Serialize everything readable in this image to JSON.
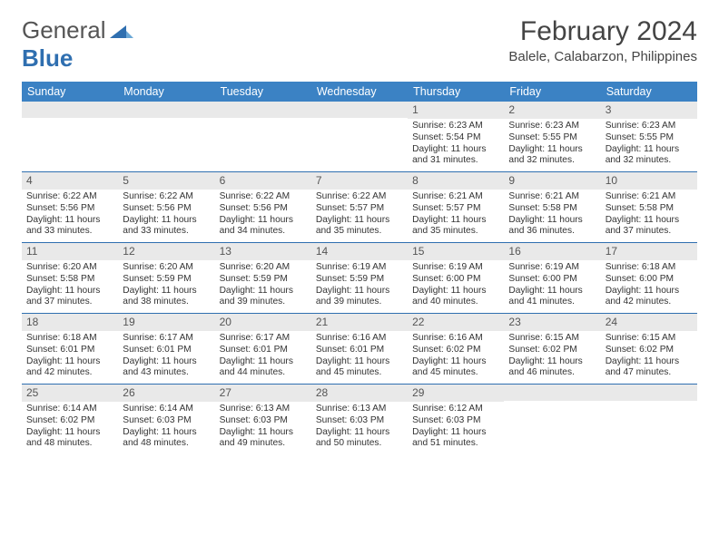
{
  "logo": {
    "text_general": "General",
    "text_blue": "Blue"
  },
  "header": {
    "month": "February 2024",
    "location": "Balele, Calabarzon, Philippines"
  },
  "weekdays": [
    "Sunday",
    "Monday",
    "Tuesday",
    "Wednesday",
    "Thursday",
    "Friday",
    "Saturday"
  ],
  "colors": {
    "header_bg": "#3b82c4",
    "header_text": "#ffffff",
    "stripe_bg": "#e9e9e9",
    "border": "#2f6fb0",
    "logo_blue": "#2f6fb0",
    "text": "#333333"
  },
  "weeks": [
    [
      {
        "empty": true
      },
      {
        "empty": true
      },
      {
        "empty": true
      },
      {
        "empty": true
      },
      {
        "day": "1",
        "sunrise": "Sunrise: 6:23 AM",
        "sunset": "Sunset: 5:54 PM",
        "d1": "Daylight: 11 hours",
        "d2": "and 31 minutes."
      },
      {
        "day": "2",
        "sunrise": "Sunrise: 6:23 AM",
        "sunset": "Sunset: 5:55 PM",
        "d1": "Daylight: 11 hours",
        "d2": "and 32 minutes."
      },
      {
        "day": "3",
        "sunrise": "Sunrise: 6:23 AM",
        "sunset": "Sunset: 5:55 PM",
        "d1": "Daylight: 11 hours",
        "d2": "and 32 minutes."
      }
    ],
    [
      {
        "day": "4",
        "sunrise": "Sunrise: 6:22 AM",
        "sunset": "Sunset: 5:56 PM",
        "d1": "Daylight: 11 hours",
        "d2": "and 33 minutes."
      },
      {
        "day": "5",
        "sunrise": "Sunrise: 6:22 AM",
        "sunset": "Sunset: 5:56 PM",
        "d1": "Daylight: 11 hours",
        "d2": "and 33 minutes."
      },
      {
        "day": "6",
        "sunrise": "Sunrise: 6:22 AM",
        "sunset": "Sunset: 5:56 PM",
        "d1": "Daylight: 11 hours",
        "d2": "and 34 minutes."
      },
      {
        "day": "7",
        "sunrise": "Sunrise: 6:22 AM",
        "sunset": "Sunset: 5:57 PM",
        "d1": "Daylight: 11 hours",
        "d2": "and 35 minutes."
      },
      {
        "day": "8",
        "sunrise": "Sunrise: 6:21 AM",
        "sunset": "Sunset: 5:57 PM",
        "d1": "Daylight: 11 hours",
        "d2": "and 35 minutes."
      },
      {
        "day": "9",
        "sunrise": "Sunrise: 6:21 AM",
        "sunset": "Sunset: 5:58 PM",
        "d1": "Daylight: 11 hours",
        "d2": "and 36 minutes."
      },
      {
        "day": "10",
        "sunrise": "Sunrise: 6:21 AM",
        "sunset": "Sunset: 5:58 PM",
        "d1": "Daylight: 11 hours",
        "d2": "and 37 minutes."
      }
    ],
    [
      {
        "day": "11",
        "sunrise": "Sunrise: 6:20 AM",
        "sunset": "Sunset: 5:58 PM",
        "d1": "Daylight: 11 hours",
        "d2": "and 37 minutes."
      },
      {
        "day": "12",
        "sunrise": "Sunrise: 6:20 AM",
        "sunset": "Sunset: 5:59 PM",
        "d1": "Daylight: 11 hours",
        "d2": "and 38 minutes."
      },
      {
        "day": "13",
        "sunrise": "Sunrise: 6:20 AM",
        "sunset": "Sunset: 5:59 PM",
        "d1": "Daylight: 11 hours",
        "d2": "and 39 minutes."
      },
      {
        "day": "14",
        "sunrise": "Sunrise: 6:19 AM",
        "sunset": "Sunset: 5:59 PM",
        "d1": "Daylight: 11 hours",
        "d2": "and 39 minutes."
      },
      {
        "day": "15",
        "sunrise": "Sunrise: 6:19 AM",
        "sunset": "Sunset: 6:00 PM",
        "d1": "Daylight: 11 hours",
        "d2": "and 40 minutes."
      },
      {
        "day": "16",
        "sunrise": "Sunrise: 6:19 AM",
        "sunset": "Sunset: 6:00 PM",
        "d1": "Daylight: 11 hours",
        "d2": "and 41 minutes."
      },
      {
        "day": "17",
        "sunrise": "Sunrise: 6:18 AM",
        "sunset": "Sunset: 6:00 PM",
        "d1": "Daylight: 11 hours",
        "d2": "and 42 minutes."
      }
    ],
    [
      {
        "day": "18",
        "sunrise": "Sunrise: 6:18 AM",
        "sunset": "Sunset: 6:01 PM",
        "d1": "Daylight: 11 hours",
        "d2": "and 42 minutes."
      },
      {
        "day": "19",
        "sunrise": "Sunrise: 6:17 AM",
        "sunset": "Sunset: 6:01 PM",
        "d1": "Daylight: 11 hours",
        "d2": "and 43 minutes."
      },
      {
        "day": "20",
        "sunrise": "Sunrise: 6:17 AM",
        "sunset": "Sunset: 6:01 PM",
        "d1": "Daylight: 11 hours",
        "d2": "and 44 minutes."
      },
      {
        "day": "21",
        "sunrise": "Sunrise: 6:16 AM",
        "sunset": "Sunset: 6:01 PM",
        "d1": "Daylight: 11 hours",
        "d2": "and 45 minutes."
      },
      {
        "day": "22",
        "sunrise": "Sunrise: 6:16 AM",
        "sunset": "Sunset: 6:02 PM",
        "d1": "Daylight: 11 hours",
        "d2": "and 45 minutes."
      },
      {
        "day": "23",
        "sunrise": "Sunrise: 6:15 AM",
        "sunset": "Sunset: 6:02 PM",
        "d1": "Daylight: 11 hours",
        "d2": "and 46 minutes."
      },
      {
        "day": "24",
        "sunrise": "Sunrise: 6:15 AM",
        "sunset": "Sunset: 6:02 PM",
        "d1": "Daylight: 11 hours",
        "d2": "and 47 minutes."
      }
    ],
    [
      {
        "day": "25",
        "sunrise": "Sunrise: 6:14 AM",
        "sunset": "Sunset: 6:02 PM",
        "d1": "Daylight: 11 hours",
        "d2": "and 48 minutes."
      },
      {
        "day": "26",
        "sunrise": "Sunrise: 6:14 AM",
        "sunset": "Sunset: 6:03 PM",
        "d1": "Daylight: 11 hours",
        "d2": "and 48 minutes."
      },
      {
        "day": "27",
        "sunrise": "Sunrise: 6:13 AM",
        "sunset": "Sunset: 6:03 PM",
        "d1": "Daylight: 11 hours",
        "d2": "and 49 minutes."
      },
      {
        "day": "28",
        "sunrise": "Sunrise: 6:13 AM",
        "sunset": "Sunset: 6:03 PM",
        "d1": "Daylight: 11 hours",
        "d2": "and 50 minutes."
      },
      {
        "day": "29",
        "sunrise": "Sunrise: 6:12 AM",
        "sunset": "Sunset: 6:03 PM",
        "d1": "Daylight: 11 hours",
        "d2": "and 51 minutes."
      },
      {
        "empty": true
      },
      {
        "empty": true
      }
    ]
  ]
}
